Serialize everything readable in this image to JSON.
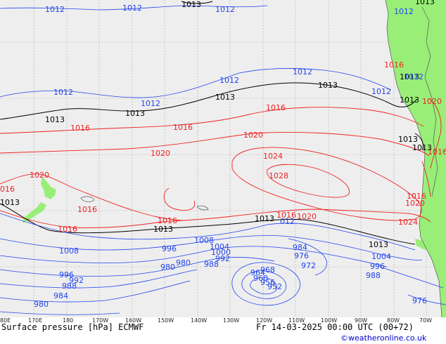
{
  "footer": {
    "left": "Surface pressure [hPa] ECMWF",
    "right": "Fr 14-03-2025 00:00 UTC (00+72)",
    "credit": "©weatheronline.co.uk"
  },
  "lon_ticks": [
    "80E",
    "170E",
    "180",
    "170W",
    "160W",
    "150W",
    "140W",
    "130W",
    "120W",
    "110W",
    "100W",
    "90W",
    "80W",
    "70W"
  ],
  "colors": {
    "ocean": "#eeeeee",
    "land": "#99ee77",
    "grid": "#aaaaaa",
    "high_isobar": "#ee2222",
    "low_isobar": "#2244ee",
    "ref_isobar": "#000000",
    "coast": "#555555"
  },
  "isobar_labels": {
    "black": [
      "1013",
      "1013",
      "1013",
      "1013",
      "1013",
      "1013",
      "1013",
      "1013",
      "1013",
      "1013",
      "1013",
      "1013",
      "1013",
      "1013"
    ],
    "red": [
      "1016",
      "1016",
      "1016",
      "1020",
      "1020",
      "1024",
      "1028",
      "1020",
      "016",
      "1016",
      "1016",
      "1016",
      "1016",
      "1020",
      "1016",
      "1020",
      "1024",
      "1020",
      "1016",
      "1016"
    ],
    "blue": [
      "1012",
      "1012",
      "1012",
      "1012",
      "1012",
      "1012",
      "1012",
      "1012",
      "1012",
      "1012",
      "012",
      "1008",
      "1008",
      "1004",
      "1000",
      "996",
      "992",
      "988",
      "984",
      "980",
      "980",
      "976",
      "972",
      "968",
      "964",
      "960",
      "956",
      "952",
      "1004",
      "996",
      "988",
      "976",
      "996",
      "992",
      "988",
      "984",
      "980"
    ]
  }
}
